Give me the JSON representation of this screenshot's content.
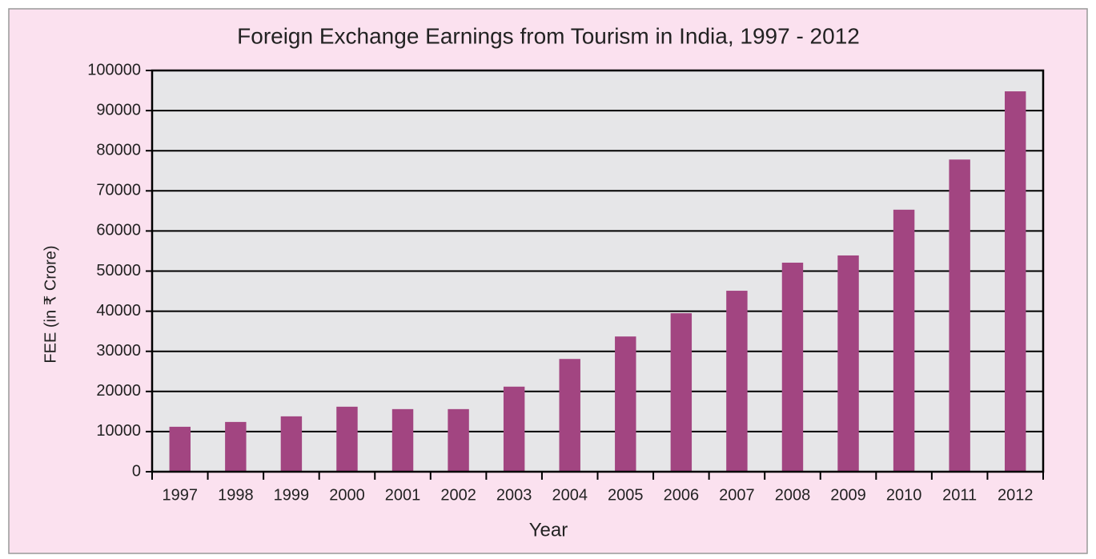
{
  "chart_data": {
    "type": "bar",
    "title": "Foreign Exchange Earnings from Tourism in India, 1997 - 2012",
    "x_label": "Year",
    "y_label": "FEE (in ₹ Crore)",
    "categories": [
      "1997",
      "1998",
      "1999",
      "2000",
      "2001",
      "2002",
      "2003",
      "2004",
      "2005",
      "2006",
      "2007",
      "2008",
      "2009",
      "2010",
      "2011",
      "2012"
    ],
    "values": [
      11200,
      12400,
      13800,
      16200,
      15600,
      15600,
      21200,
      28100,
      33700,
      39500,
      45100,
      52100,
      53900,
      65300,
      77800,
      94800
    ],
    "color": "#a24581",
    "ylim": [
      0,
      100000
    ],
    "yticks": [
      0,
      10000,
      20000,
      30000,
      40000,
      50000,
      60000,
      70000,
      80000,
      90000,
      100000
    ],
    "grid": true
  }
}
